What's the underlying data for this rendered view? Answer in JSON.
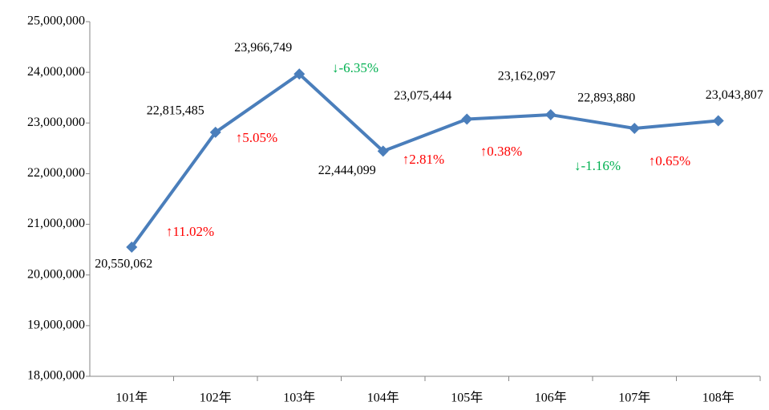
{
  "chart_data": {
    "type": "line",
    "categories": [
      "101年",
      "102年",
      "103年",
      "104年",
      "105年",
      "106年",
      "107年",
      "108年"
    ],
    "series": [
      {
        "color": "#4a7ebb",
        "values": [
          20550062,
          22815485,
          23966749,
          22444099,
          23075444,
          23162097,
          22893880,
          23043807
        ],
        "value_labels": [
          "20,550,062",
          "22,815,485",
          "23,966,749",
          "22,444,099",
          "23,075,444",
          "23,162,097",
          "22,893,880",
          "23,043,807"
        ]
      }
    ],
    "ylim": [
      18000000,
      25000000
    ],
    "yticks": [
      {
        "value": 18000000,
        "label": "18,000,000"
      },
      {
        "value": 19000000,
        "label": "19,000,000"
      },
      {
        "value": 20000000,
        "label": "20,000,000"
      },
      {
        "value": 21000000,
        "label": "21,000,000"
      },
      {
        "value": 22000000,
        "label": "22,000,000"
      },
      {
        "value": 23000000,
        "label": "23,000,000"
      },
      {
        "value": 24000000,
        "label": "24,000,000"
      },
      {
        "value": 25000000,
        "label": "25,000,000"
      }
    ],
    "grid": false,
    "annotations": [
      {
        "text": "↑11.02%",
        "color": "#ff0000"
      },
      {
        "text": "↑5.05%",
        "color": "#ff0000"
      },
      {
        "text": "↓-6.35%",
        "color": "#00b050"
      },
      {
        "text": "↑2.81%",
        "color": "#ff0000"
      },
      {
        "text": "↑0.38%",
        "color": "#ff0000"
      },
      {
        "text": "↓-1.16%",
        "color": "#00b050"
      },
      {
        "text": "↑0.65%",
        "color": "#ff0000"
      }
    ]
  }
}
